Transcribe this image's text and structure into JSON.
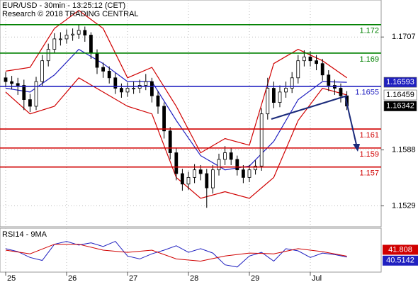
{
  "chart_data": [
    {
      "type": "candlestick",
      "title": "EUR/USD - 30min - 13:25:12 (CET)",
      "subtitle": "Research © 2018 TRADING CENTRAL",
      "x": [
        0,
        0.1,
        0.2,
        0.3,
        0.4,
        0.5,
        0.6,
        0.7,
        0.8,
        0.9,
        1.0,
        1.1,
        1.2,
        1.3,
        1.4,
        1.5,
        1.6,
        1.7,
        1.8,
        1.9,
        2.0,
        2.1,
        2.2,
        2.3,
        2.4,
        2.5,
        2.6,
        2.7,
        2.8,
        2.9,
        3.0,
        3.1,
        3.2,
        3.3,
        3.4,
        3.5,
        3.6,
        3.7,
        3.8,
        3.9,
        4.0,
        4.1,
        4.2,
        4.3,
        4.4,
        4.5,
        4.6,
        4.7,
        4.8,
        4.9,
        5.0,
        5.1,
        5.2,
        5.3,
        5.4,
        5.5,
        5.6
      ],
      "open": [
        1.1664,
        1.166,
        1.1658,
        1.1656,
        1.1641,
        1.1634,
        1.166,
        1.1682,
        1.1694,
        1.1705,
        1.1705,
        1.1709,
        1.171,
        1.1714,
        1.1709,
        1.169,
        1.1675,
        1.1671,
        1.1664,
        1.1653,
        1.1649,
        1.1653,
        1.1653,
        1.1656,
        1.166,
        1.1645,
        1.1634,
        1.1608,
        1.1585,
        1.1563,
        1.1552,
        1.1559,
        1.1567,
        1.1563,
        1.1548,
        1.1567,
        1.1578,
        1.1585,
        1.1578,
        1.1567,
        1.1559,
        1.1567,
        1.1571,
        1.1626,
        1.1653,
        1.1638,
        1.1649,
        1.1653,
        1.1664,
        1.1682,
        1.1686,
        1.1682,
        1.1679,
        1.1667,
        1.1656,
        1.1653,
        1.1645
      ],
      "high": [
        1.167,
        1.1666,
        1.1664,
        1.1662,
        1.1647,
        1.1665,
        1.1688,
        1.17,
        1.1711,
        1.1712,
        1.1715,
        1.1716,
        1.172,
        1.1718,
        1.1712,
        1.1694,
        1.168,
        1.1676,
        1.1669,
        1.1658,
        1.1659,
        1.166,
        1.1662,
        1.1668,
        1.1664,
        1.165,
        1.1638,
        1.1612,
        1.159,
        1.1568,
        1.1565,
        1.1573,
        1.1572,
        1.1568,
        1.1572,
        1.1584,
        1.1592,
        1.159,
        1.1582,
        1.1572,
        1.1572,
        1.1577,
        1.1632,
        1.1664,
        1.166,
        1.1656,
        1.166,
        1.167,
        1.1688,
        1.1693,
        1.1692,
        1.1688,
        1.1684,
        1.1672,
        1.1662,
        1.1658,
        1.165
      ],
      "low": [
        1.1654,
        1.1652,
        1.1646,
        1.163,
        1.1628,
        1.163,
        1.1655,
        1.1676,
        1.169,
        1.1698,
        1.17,
        1.1703,
        1.1705,
        1.1702,
        1.1684,
        1.1668,
        1.1664,
        1.1658,
        1.1647,
        1.1643,
        1.1644,
        1.1647,
        1.1648,
        1.1651,
        1.1638,
        1.1626,
        1.16,
        1.1578,
        1.1556,
        1.1545,
        1.1546,
        1.1553,
        1.1556,
        1.1527,
        1.1542,
        1.1561,
        1.1572,
        1.1572,
        1.1561,
        1.1553,
        1.1554,
        1.1562,
        1.1566,
        1.162,
        1.1632,
        1.1633,
        1.1643,
        1.1648,
        1.1658,
        1.1676,
        1.1676,
        1.1672,
        1.1661,
        1.165,
        1.1646,
        1.1638,
        1.163
      ],
      "close": [
        1.166,
        1.1658,
        1.1656,
        1.1641,
        1.1634,
        1.166,
        1.1682,
        1.1694,
        1.1705,
        1.1705,
        1.1709,
        1.171,
        1.1714,
        1.1709,
        1.169,
        1.1675,
        1.1671,
        1.1664,
        1.1653,
        1.1649,
        1.1653,
        1.1653,
        1.1656,
        1.166,
        1.1645,
        1.1634,
        1.1608,
        1.1585,
        1.1563,
        1.1552,
        1.1559,
        1.1567,
        1.1563,
        1.1548,
        1.1567,
        1.1578,
        1.1585,
        1.1578,
        1.1567,
        1.1559,
        1.1567,
        1.1571,
        1.1626,
        1.1653,
        1.1638,
        1.1649,
        1.1653,
        1.1664,
        1.1682,
        1.1686,
        1.1682,
        1.1679,
        1.1667,
        1.1656,
        1.1653,
        1.1645,
        1.16342
      ],
      "series": [
        {
          "color": "#d00000",
          "x": [
            0,
            0.4,
            0.8,
            1.2,
            1.6,
            2.0,
            2.4,
            2.8,
            3.2,
            3.6,
            4.0,
            4.4,
            4.8,
            5.2,
            5.6
          ],
          "values": [
            1.1671,
            1.1675,
            1.1716,
            1.1735,
            1.1716,
            1.1664,
            1.1675,
            1.1634,
            1.1585,
            1.16,
            1.1593,
            1.1679,
            1.1694,
            1.1682,
            1.1664
          ]
        },
        {
          "color": "#d00000",
          "x": [
            0,
            0.4,
            0.8,
            1.2,
            1.6,
            2.0,
            2.4,
            2.8,
            3.2,
            3.6,
            4.0,
            4.4,
            4.8,
            5.2,
            5.6
          ],
          "values": [
            1.1649,
            1.1626,
            1.1634,
            1.1664,
            1.1649,
            1.1634,
            1.1626,
            1.1559,
            1.1537,
            1.1544,
            1.1537,
            1.1559,
            1.1619,
            1.1653,
            1.16459
          ]
        },
        {
          "color": "#2020c0",
          "x": [
            0,
            0.4,
            0.8,
            1.2,
            1.6,
            2.0,
            2.4,
            2.8,
            3.2,
            3.6,
            4.0,
            4.4,
            4.8,
            5.2,
            5.6
          ],
          "values": [
            1.1653,
            1.1649,
            1.1667,
            1.1694,
            1.1679,
            1.166,
            1.166,
            1.1619,
            1.1582,
            1.1567,
            1.1571,
            1.1597,
            1.1641,
            1.166,
            1.16593
          ]
        }
      ],
      "levels": [
        {
          "value": 1.172,
          "color": "#008000"
        },
        {
          "value": 1.169,
          "color": "#008000"
        },
        {
          "value": 1.1655,
          "color": "#2020c0"
        },
        {
          "value": 1.161,
          "color": "#d00000"
        },
        {
          "value": 1.159,
          "color": "#d00000"
        },
        {
          "value": 1.157,
          "color": "#d00000"
        }
      ],
      "xlim": [
        -0.093,
        6.163
      ],
      "xticks": [
        {
          "value": 0,
          "label": "25"
        },
        {
          "value": 1,
          "label": "26"
        },
        {
          "value": 2,
          "label": "27"
        },
        {
          "value": 3,
          "label": "28"
        },
        {
          "value": 4,
          "label": "29"
        },
        {
          "value": 5,
          "label": "Jul"
        }
      ],
      "ylim": [
        1.1507,
        1.1746
      ],
      "yticks": [
        1.1529,
        1.1588,
        1.1707
      ],
      "grid": true
    },
    {
      "type": "line",
      "title": "RSI14 - 9MA",
      "ylim": [
        20,
        80
      ],
      "series": [
        {
          "color": "#2020c0",
          "x": [
            0,
            0.2,
            0.4,
            0.6,
            0.8,
            1.0,
            1.2,
            1.4,
            1.6,
            1.8,
            2.0,
            2.2,
            2.4,
            2.6,
            2.8,
            3.0,
            3.2,
            3.4,
            3.6,
            3.8,
            4.0,
            4.2,
            4.4,
            4.6,
            4.8,
            5.0,
            5.2,
            5.4,
            5.6
          ],
          "values": [
            52,
            48,
            40,
            36,
            58,
            62,
            57,
            60,
            55,
            62,
            42,
            38,
            45,
            50,
            56,
            47,
            52,
            46,
            30,
            27,
            42,
            47,
            35,
            52,
            49,
            40,
            46,
            44,
            40.5142
          ]
        },
        {
          "color": "#d00000",
          "x": [
            0,
            0.4,
            0.8,
            1.2,
            1.6,
            2.0,
            2.4,
            2.8,
            3.2,
            3.6,
            4.0,
            4.4,
            4.8,
            5.2,
            5.6
          ],
          "values": [
            50,
            45,
            58,
            58,
            50,
            47,
            50,
            38,
            35,
            42,
            46,
            45,
            52,
            48,
            41.808
          ]
        }
      ]
    }
  ]
}
